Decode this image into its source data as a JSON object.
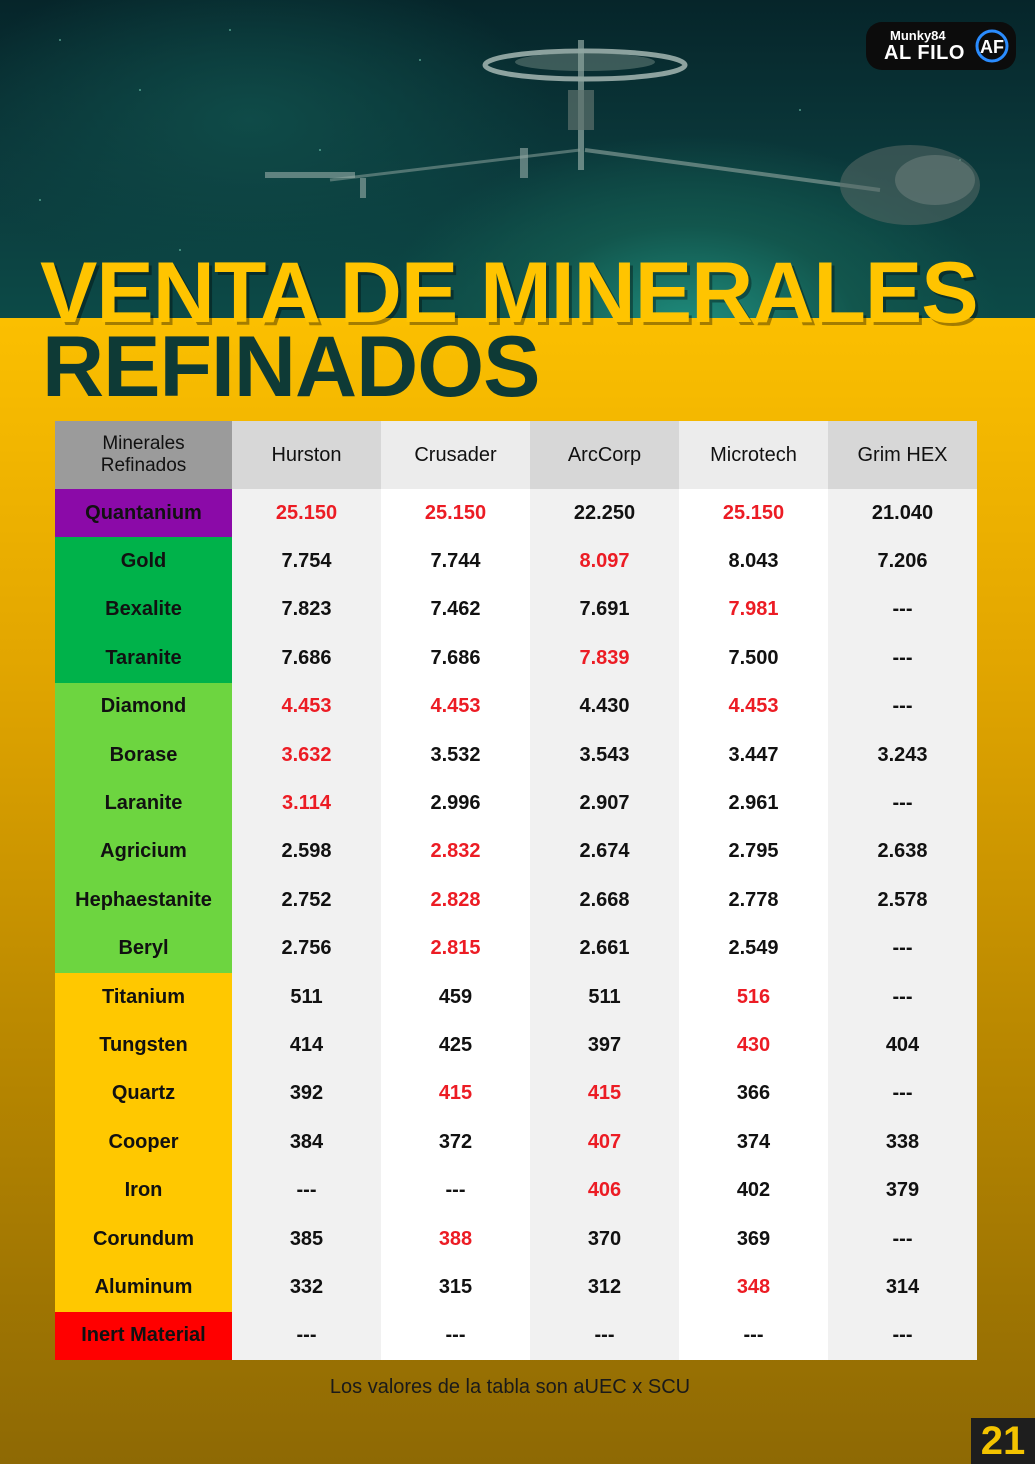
{
  "brand": {
    "line1": "Munky84",
    "line2": "AL FILO",
    "mark": "AF"
  },
  "title": {
    "line1": "VENTA DE MINERALES",
    "line2": "REFINADOS"
  },
  "table": {
    "headers": [
      "Minerales Refinados",
      "Hurston",
      "Crusader",
      "ArcCorp",
      "Microtech",
      "Grim HEX"
    ],
    "header_first_line1": "Minerales",
    "header_first_line2": "Refinados",
    "tier_colors": {
      "purple": "#8b0aa8",
      "darkgreen": "#00b24a",
      "lightgreen": "#6dd540",
      "yellow": "#ffc800",
      "red": "#ff0000"
    },
    "highlight_color": "#ec1c24",
    "rows": [
      {
        "mineral": "Quantanium",
        "tier": "purple",
        "values": [
          "25.150",
          "25.150",
          "22.250",
          "25.150",
          "21.040"
        ],
        "highlight": [
          0,
          1,
          3
        ]
      },
      {
        "mineral": "Gold",
        "tier": "darkgreen",
        "values": [
          "7.754",
          "7.744",
          "8.097",
          "8.043",
          "7.206"
        ],
        "highlight": [
          2
        ]
      },
      {
        "mineral": "Bexalite",
        "tier": "darkgreen",
        "values": [
          "7.823",
          "7.462",
          "7.691",
          "7.981",
          "---"
        ],
        "highlight": [
          3
        ]
      },
      {
        "mineral": "Taranite",
        "tier": "darkgreen",
        "values": [
          "7.686",
          "7.686",
          "7.839",
          "7.500",
          "---"
        ],
        "highlight": [
          2
        ]
      },
      {
        "mineral": "Diamond",
        "tier": "lightgreen",
        "values": [
          "4.453",
          "4.453",
          "4.430",
          "4.453",
          "---"
        ],
        "highlight": [
          0,
          1,
          3
        ]
      },
      {
        "mineral": "Borase",
        "tier": "lightgreen",
        "values": [
          "3.632",
          "3.532",
          "3.543",
          "3.447",
          "3.243"
        ],
        "highlight": [
          0
        ]
      },
      {
        "mineral": "Laranite",
        "tier": "lightgreen",
        "values": [
          "3.114",
          "2.996",
          "2.907",
          "2.961",
          "---"
        ],
        "highlight": [
          0
        ]
      },
      {
        "mineral": "Agricium",
        "tier": "lightgreen",
        "values": [
          "2.598",
          "2.832",
          "2.674",
          "2.795",
          "2.638"
        ],
        "highlight": [
          1
        ]
      },
      {
        "mineral": "Hephaestanite",
        "tier": "lightgreen",
        "values": [
          "2.752",
          "2.828",
          "2.668",
          "2.778",
          "2.578"
        ],
        "highlight": [
          1
        ]
      },
      {
        "mineral": "Beryl",
        "tier": "lightgreen",
        "values": [
          "2.756",
          "2.815",
          "2.661",
          "2.549",
          "---"
        ],
        "highlight": [
          1
        ]
      },
      {
        "mineral": "Titanium",
        "tier": "yellow",
        "values": [
          "511",
          "459",
          "511",
          "516",
          "---"
        ],
        "highlight": [
          3
        ]
      },
      {
        "mineral": "Tungsten",
        "tier": "yellow",
        "values": [
          "414",
          "425",
          "397",
          "430",
          "404"
        ],
        "highlight": [
          3
        ]
      },
      {
        "mineral": "Quartz",
        "tier": "yellow",
        "values": [
          "392",
          "415",
          "415",
          "366",
          "---"
        ],
        "highlight": [
          1,
          2
        ]
      },
      {
        "mineral": "Cooper",
        "tier": "yellow",
        "values": [
          "384",
          "372",
          "407",
          "374",
          "338"
        ],
        "highlight": [
          2
        ]
      },
      {
        "mineral": "Iron",
        "tier": "yellow",
        "values": [
          "---",
          "---",
          "406",
          "402",
          "379"
        ],
        "highlight": [
          2
        ]
      },
      {
        "mineral": "Corundum",
        "tier": "yellow",
        "values": [
          "385",
          "388",
          "370",
          "369",
          "---"
        ],
        "highlight": [
          1
        ]
      },
      {
        "mineral": "Aluminum",
        "tier": "yellow",
        "values": [
          "332",
          "315",
          "312",
          "348",
          "314"
        ],
        "highlight": [
          3
        ]
      },
      {
        "mineral": "Inert Material",
        "tier": "red",
        "values": [
          "---",
          "---",
          "---",
          "---",
          "---"
        ],
        "highlight": []
      }
    ]
  },
  "footnote": "Los valores de la tabla son aUEC x SCU",
  "page_number": "21"
}
